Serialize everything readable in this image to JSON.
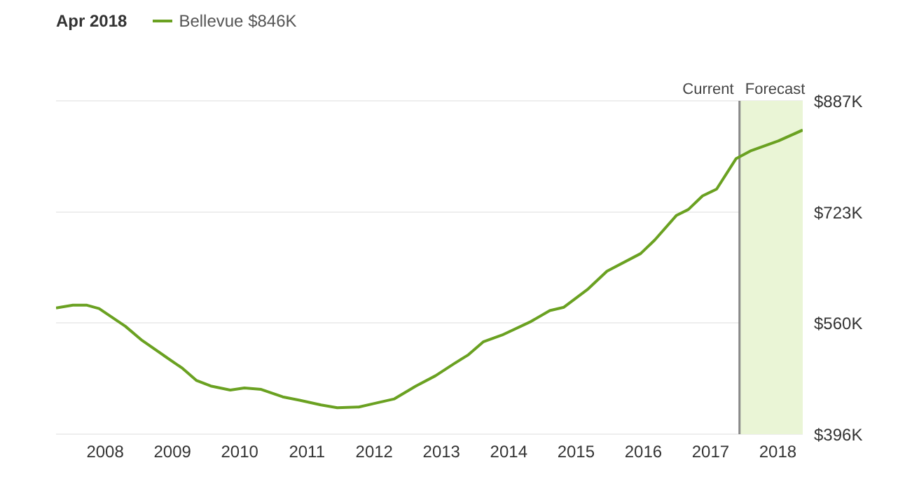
{
  "chart_data": {
    "type": "line",
    "legend_title": "Apr 2018",
    "legend": "top left",
    "grid": "y",
    "marker": "none",
    "line_style": "solid",
    "x": [
      2007.27,
      2007.52,
      2007.73,
      2007.91,
      2008.3,
      2008.55,
      2008.9,
      2009.15,
      2009.36,
      2009.57,
      2009.86,
      2010.07,
      2010.32,
      2010.64,
      2010.89,
      2011.21,
      2011.45,
      2011.77,
      2011.99,
      2012.3,
      2012.62,
      2012.91,
      2013.19,
      2013.4,
      2013.62,
      2013.9,
      2014.33,
      2014.61,
      2014.82,
      2015.18,
      2015.46,
      2015.96,
      2016.17,
      2016.49,
      2016.67,
      2016.88,
      2017.09,
      2017.38,
      2017.59,
      2018.01,
      2018.37
    ],
    "series": [
      {
        "name": "Bellevue $846K",
        "color": "#6aa121",
        "values": [
          582,
          586,
          586,
          581,
          555,
          534,
          510,
          493,
          475,
          467,
          461,
          464,
          462,
          451,
          446,
          439,
          435,
          436,
          441,
          448,
          467,
          482,
          500,
          513,
          532,
          542,
          562,
          578,
          583,
          610,
          636,
          662,
          682,
          718,
          727,
          747,
          757,
          802,
          813,
          828,
          844
        ]
      }
    ],
    "xlim": [
      2007.27,
      2018.37
    ],
    "xticks": [
      2008,
      2009,
      2010,
      2011,
      2012,
      2013,
      2014,
      2015,
      2016,
      2017,
      2018
    ],
    "ylim": [
      396,
      887
    ],
    "yticks": [
      {
        "value": 396,
        "label": "$396K"
      },
      {
        "value": 560,
        "label": "$560K"
      },
      {
        "value": 723,
        "label": "$723K"
      },
      {
        "value": 887,
        "label": "$887K"
      }
    ],
    "ref_lines": [
      {
        "axis": "x",
        "value": 2017.43,
        "label": "Current",
        "color": "#888888"
      }
    ],
    "bands": [
      {
        "axis": "x",
        "from": 2017.43,
        "to": 2018.37,
        "label": "Forecast",
        "color": "#eaf5d6"
      }
    ]
  }
}
